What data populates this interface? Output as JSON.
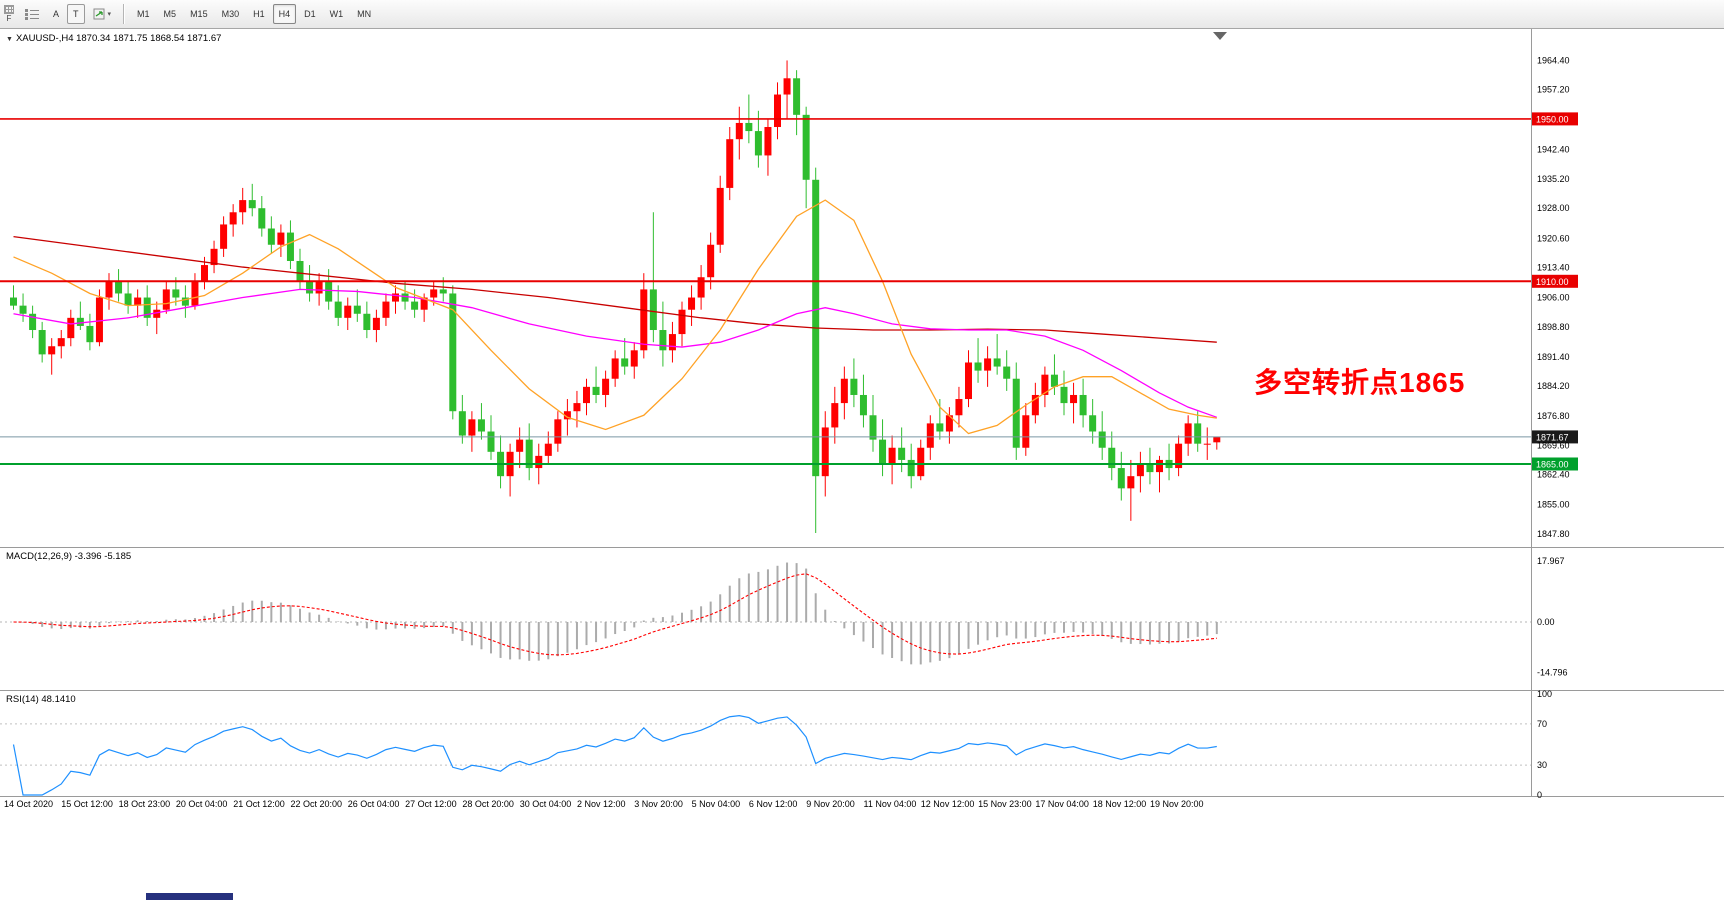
{
  "toolbar": {
    "corner_label": "F",
    "button_a": "A",
    "button_t": "T",
    "timeframes": [
      "M1",
      "M5",
      "M15",
      "M30",
      "H1",
      "H4",
      "D1",
      "W1",
      "MN"
    ],
    "selected_timeframe": "H4"
  },
  "chart": {
    "symbol_line": "XAUUSD-,H4 1870.34 1871.75 1868.54 1871.67",
    "annotation": {
      "text": "多空转折点1865",
      "color": "#FF0000"
    },
    "current_price_label": "1871.67"
  },
  "macd_panel": {
    "label": "MACD(12,26,9) -3.396 -5.185"
  },
  "rsi_panel": {
    "label": "RSI(14) 48.1410"
  },
  "chart_data": {
    "type": "candlestick",
    "symbol": "XAUUSD-",
    "timeframe": "H4",
    "last_ohlc": {
      "open": 1870.34,
      "high": 1871.75,
      "low": 1868.54,
      "close": 1871.67
    },
    "colors": {
      "bull": "#FF0000",
      "bear": "#2EBD2E",
      "ma_red": "#C80000",
      "ma_magenta": "#FF00FF",
      "ma_orange": "#FFA226",
      "rsi": "#1E90FF",
      "macd_hist": "#ABABAB",
      "macd_signal": "#FF0000"
    },
    "y_axis_ticks": [
      1964.4,
      1957.2,
      1942.4,
      1935.2,
      1928.0,
      1920.6,
      1913.4,
      1906.0,
      1898.8,
      1891.4,
      1884.2,
      1876.8,
      1869.6,
      1862.4,
      1855.0,
      1847.8
    ],
    "hlines": [
      {
        "price": 1950.0,
        "color": "#E80000",
        "width": 1.6,
        "label": "1950.00",
        "label_bg": "#E80000"
      },
      {
        "price": 1910.0,
        "color": "#E80000",
        "width": 2,
        "label": "1910.00",
        "label_bg": "#E80000"
      },
      {
        "price": 1865.0,
        "color": "#00A02C",
        "width": 2,
        "label": "1865.00",
        "label_bg": "#00A02C"
      },
      {
        "price": 1871.67,
        "color": "#7A97A5",
        "width": 1,
        "label": "1871.67",
        "label_bg": "#1A1A1A"
      }
    ],
    "x_labels": [
      {
        "i": 0,
        "t": "14 Oct 2020"
      },
      {
        "i": 6,
        "t": "15 Oct 12:00"
      },
      {
        "i": 12,
        "t": "18 Oct 23:00"
      },
      {
        "i": 18,
        "t": "20 Oct 04:00"
      },
      {
        "i": 24,
        "t": "21 Oct 12:00"
      },
      {
        "i": 30,
        "t": "22 Oct 20:00"
      },
      {
        "i": 36,
        "t": "26 Oct 04:00"
      },
      {
        "i": 42,
        "t": "27 Oct 12:00"
      },
      {
        "i": 48,
        "t": "28 Oct 20:00"
      },
      {
        "i": 54,
        "t": "30 Oct 04:00"
      },
      {
        "i": 60,
        "t": "2 Nov 12:00"
      },
      {
        "i": 66,
        "t": "3 Nov 20:00"
      },
      {
        "i": 72,
        "t": "5 Nov 04:00"
      },
      {
        "i": 78,
        "t": "6 Nov 12:00"
      },
      {
        "i": 84,
        "t": "9 Nov 20:00"
      },
      {
        "i": 90,
        "t": "11 Nov 04:00"
      },
      {
        "i": 96,
        "t": "12 Nov 12:00"
      },
      {
        "i": 102,
        "t": "15 Nov 23:00"
      },
      {
        "i": 108,
        "t": "17 Nov 04:00"
      },
      {
        "i": 114,
        "t": "18 Nov 12:00"
      },
      {
        "i": 120,
        "t": "19 Nov 20:00"
      }
    ],
    "candles": [
      [
        1906,
        1909,
        1903,
        1904
      ],
      [
        1904,
        1907,
        1900,
        1902
      ],
      [
        1902,
        1904,
        1896,
        1898
      ],
      [
        1898,
        1900,
        1890,
        1892
      ],
      [
        1892,
        1896,
        1887,
        1894
      ],
      [
        1894,
        1898,
        1891,
        1896
      ],
      [
        1896,
        1903,
        1894,
        1901
      ],
      [
        1901,
        1905,
        1898,
        1899
      ],
      [
        1899,
        1902,
        1893,
        1895
      ],
      [
        1895,
        1908,
        1894,
        1906
      ],
      [
        1906,
        1912,
        1903,
        1910
      ],
      [
        1910,
        1913,
        1905,
        1907
      ],
      [
        1907,
        1910,
        1902,
        1904
      ],
      [
        1904,
        1908,
        1901,
        1906
      ],
      [
        1906,
        1909,
        1899,
        1901
      ],
      [
        1901,
        1905,
        1897,
        1903
      ],
      [
        1903,
        1910,
        1902,
        1908
      ],
      [
        1908,
        1911,
        1904,
        1906
      ],
      [
        1906,
        1909,
        1901,
        1904
      ],
      [
        1904,
        1912,
        1903,
        1910
      ],
      [
        1910,
        1916,
        1908,
        1914
      ],
      [
        1914,
        1920,
        1912,
        1918
      ],
      [
        1918,
        1926,
        1916,
        1924
      ],
      [
        1924,
        1929,
        1921,
        1927
      ],
      [
        1927,
        1933,
        1924,
        1930
      ],
      [
        1930,
        1934,
        1926,
        1928
      ],
      [
        1928,
        1931,
        1921,
        1923
      ],
      [
        1923,
        1926,
        1917,
        1919
      ],
      [
        1919,
        1924,
        1916,
        1922
      ],
      [
        1922,
        1925,
        1913,
        1915
      ],
      [
        1915,
        1918,
        1908,
        1910
      ],
      [
        1910,
        1914,
        1905,
        1907
      ],
      [
        1907,
        1912,
        1904,
        1910
      ],
      [
        1910,
        1913,
        1903,
        1905
      ],
      [
        1905,
        1909,
        1899,
        1901
      ],
      [
        1901,
        1906,
        1898,
        1904
      ],
      [
        1904,
        1908,
        1900,
        1902
      ],
      [
        1902,
        1905,
        1896,
        1898
      ],
      [
        1898,
        1903,
        1895,
        1901
      ],
      [
        1901,
        1907,
        1899,
        1905
      ],
      [
        1905,
        1909,
        1902,
        1907
      ],
      [
        1907,
        1910,
        1903,
        1905
      ],
      [
        1905,
        1908,
        1901,
        1903
      ],
      [
        1903,
        1907,
        1900,
        1906
      ],
      [
        1906,
        1910,
        1904,
        1908
      ],
      [
        1908,
        1911,
        1905,
        1907
      ],
      [
        1907,
        1909,
        1876,
        1878
      ],
      [
        1878,
        1882,
        1870,
        1872
      ],
      [
        1872,
        1878,
        1868,
        1876
      ],
      [
        1876,
        1880,
        1871,
        1873
      ],
      [
        1873,
        1877,
        1866,
        1868
      ],
      [
        1868,
        1872,
        1859,
        1862
      ],
      [
        1862,
        1870,
        1857,
        1868
      ],
      [
        1868,
        1874,
        1864,
        1871
      ],
      [
        1871,
        1875,
        1861,
        1864
      ],
      [
        1864,
        1870,
        1860,
        1867
      ],
      [
        1867,
        1873,
        1865,
        1870
      ],
      [
        1870,
        1878,
        1868,
        1876
      ],
      [
        1876,
        1881,
        1872,
        1878
      ],
      [
        1878,
        1883,
        1874,
        1880
      ],
      [
        1880,
        1886,
        1877,
        1884
      ],
      [
        1884,
        1889,
        1880,
        1882
      ],
      [
        1882,
        1888,
        1879,
        1886
      ],
      [
        1886,
        1893,
        1884,
        1891
      ],
      [
        1891,
        1896,
        1887,
        1889
      ],
      [
        1889,
        1895,
        1886,
        1893
      ],
      [
        1893,
        1912,
        1891,
        1908
      ],
      [
        1908,
        1927,
        1895,
        1898
      ],
      [
        1898,
        1905,
        1889,
        1893
      ],
      [
        1893,
        1900,
        1890,
        1897
      ],
      [
        1897,
        1905,
        1894,
        1903
      ],
      [
        1903,
        1909,
        1899,
        1906
      ],
      [
        1906,
        1914,
        1903,
        1911
      ],
      [
        1911,
        1922,
        1908,
        1919
      ],
      [
        1919,
        1936,
        1917,
        1933
      ],
      [
        1933,
        1948,
        1930,
        1945
      ],
      [
        1945,
        1953,
        1940,
        1949
      ],
      [
        1949,
        1956,
        1944,
        1947
      ],
      [
        1947,
        1952,
        1938,
        1941
      ],
      [
        1941,
        1950,
        1936,
        1948
      ],
      [
        1948,
        1959,
        1945,
        1956
      ],
      [
        1956,
        1964.4,
        1950,
        1960
      ],
      [
        1960,
        1962,
        1946,
        1951
      ],
      [
        1951,
        1953,
        1928,
        1935
      ],
      [
        1935,
        1938,
        1848,
        1862
      ],
      [
        1862,
        1878,
        1857,
        1874
      ],
      [
        1874,
        1884,
        1870,
        1880
      ],
      [
        1880,
        1889,
        1876,
        1886
      ],
      [
        1886,
        1891,
        1879,
        1882
      ],
      [
        1882,
        1887,
        1874,
        1877
      ],
      [
        1877,
        1882,
        1868,
        1871
      ],
      [
        1871,
        1876,
        1862,
        1865
      ],
      [
        1865,
        1872,
        1860,
        1869
      ],
      [
        1869,
        1874,
        1863,
        1866
      ],
      [
        1866,
        1870,
        1859,
        1862
      ],
      [
        1862,
        1871,
        1861,
        1869
      ],
      [
        1869,
        1877,
        1866,
        1875
      ],
      [
        1875,
        1881,
        1871,
        1873
      ],
      [
        1873,
        1879,
        1870,
        1877
      ],
      [
        1877,
        1884,
        1874,
        1881
      ],
      [
        1881,
        1893,
        1879,
        1890
      ],
      [
        1890,
        1896,
        1885,
        1888
      ],
      [
        1888,
        1894,
        1884,
        1891
      ],
      [
        1891,
        1897,
        1887,
        1889
      ],
      [
        1889,
        1893,
        1883,
        1886
      ],
      [
        1886,
        1890,
        1866,
        1869
      ],
      [
        1869,
        1880,
        1867,
        1877
      ],
      [
        1877,
        1885,
        1875,
        1882
      ],
      [
        1882,
        1889,
        1879,
        1887
      ],
      [
        1887,
        1892,
        1882,
        1884
      ],
      [
        1884,
        1888,
        1877,
        1880
      ],
      [
        1880,
        1885,
        1875,
        1882
      ],
      [
        1882,
        1886,
        1874,
        1877
      ],
      [
        1877,
        1881,
        1870,
        1873
      ],
      [
        1873,
        1878,
        1866,
        1869
      ],
      [
        1869,
        1873,
        1861,
        1864
      ],
      [
        1864,
        1868,
        1856,
        1859
      ],
      [
        1859,
        1866,
        1851,
        1862
      ],
      [
        1862,
        1868,
        1858,
        1865
      ],
      [
        1865,
        1869,
        1860,
        1863
      ],
      [
        1863,
        1867,
        1858,
        1866
      ],
      [
        1866,
        1870,
        1861,
        1864
      ],
      [
        1864,
        1872,
        1862,
        1870
      ],
      [
        1870,
        1877,
        1867,
        1875
      ],
      [
        1875,
        1878,
        1868,
        1870
      ],
      [
        1870,
        1874,
        1866,
        1870
      ],
      [
        1870.34,
        1871.75,
        1868.54,
        1871.67
      ]
    ],
    "ma_lines": [
      {
        "name": "ma-red-line",
        "color": "#C80000",
        "points": [
          [
            0,
            1921
          ],
          [
            8,
            1918.5
          ],
          [
            16,
            1916
          ],
          [
            24,
            1913.5
          ],
          [
            32,
            1911.5
          ],
          [
            40,
            1909.5
          ],
          [
            48,
            1908
          ],
          [
            56,
            1906
          ],
          [
            64,
            1903.5
          ],
          [
            72,
            1901
          ],
          [
            78,
            1899.5
          ],
          [
            84,
            1898.5
          ],
          [
            90,
            1898
          ],
          [
            96,
            1898
          ],
          [
            102,
            1898.2
          ],
          [
            108,
            1898
          ],
          [
            114,
            1897
          ],
          [
            120,
            1896
          ],
          [
            126,
            1895
          ]
        ]
      },
      {
        "name": "ma-magenta-line",
        "color": "#FF00FF",
        "points": [
          [
            0,
            1902
          ],
          [
            6,
            1899.5
          ],
          [
            12,
            1901
          ],
          [
            18,
            1903.5
          ],
          [
            24,
            1906
          ],
          [
            30,
            1908
          ],
          [
            36,
            1907.5
          ],
          [
            42,
            1906
          ],
          [
            48,
            1903.5
          ],
          [
            54,
            1899.5
          ],
          [
            60,
            1896.5
          ],
          [
            66,
            1894.5
          ],
          [
            70,
            1893.8
          ],
          [
            74,
            1895
          ],
          [
            78,
            1898
          ],
          [
            82,
            1902
          ],
          [
            85,
            1903.5
          ],
          [
            88,
            1902
          ],
          [
            92,
            1899.5
          ],
          [
            96,
            1898.3
          ],
          [
            100,
            1898
          ],
          [
            104,
            1898
          ],
          [
            108,
            1896.5
          ],
          [
            112,
            1893
          ],
          [
            116,
            1888
          ],
          [
            120,
            1882.5
          ],
          [
            123,
            1879
          ],
          [
            126,
            1876.5
          ]
        ]
      },
      {
        "name": "ma-orange-line",
        "color": "#FFA226",
        "points": [
          [
            0,
            1916
          ],
          [
            4,
            1912
          ],
          [
            8,
            1907
          ],
          [
            12,
            1904
          ],
          [
            16,
            1904.5
          ],
          [
            20,
            1906.5
          ],
          [
            24,
            1912
          ],
          [
            28,
            1918.5
          ],
          [
            31,
            1921.5
          ],
          [
            34,
            1918
          ],
          [
            40,
            1908.5
          ],
          [
            46,
            1903
          ],
          [
            50,
            1893
          ],
          [
            54,
            1883.5
          ],
          [
            58,
            1876.5
          ],
          [
            62,
            1873.5
          ],
          [
            66,
            1877
          ],
          [
            70,
            1886
          ],
          [
            74,
            1898
          ],
          [
            78,
            1913
          ],
          [
            82,
            1926
          ],
          [
            85,
            1930
          ],
          [
            88,
            1925
          ],
          [
            91,
            1910
          ],
          [
            94,
            1892
          ],
          [
            97,
            1879
          ],
          [
            100,
            1872.5
          ],
          [
            103,
            1874.5
          ],
          [
            106,
            1879.5
          ],
          [
            109,
            1884
          ],
          [
            112,
            1886.5
          ],
          [
            115,
            1886.5
          ],
          [
            118,
            1882.5
          ],
          [
            121,
            1878.5
          ],
          [
            124,
            1877
          ],
          [
            126,
            1876.3
          ]
        ]
      }
    ],
    "indicators": {
      "macd": {
        "fast": 12,
        "slow": 26,
        "signal": 9,
        "last_main": -3.396,
        "last_signal": -5.185,
        "axis": [
          {
            "v": 17.967,
            "t": "17.967"
          },
          {
            "v": 0,
            "t": "0.00"
          },
          {
            "v": -14.796,
            "t": "-14.796"
          }
        ]
      },
      "rsi": {
        "period": 14,
        "last": 48.141,
        "levels": [
          70,
          30
        ],
        "axis": [
          {
            "v": 100,
            "t": "100"
          },
          {
            "v": 70,
            "t": "70"
          },
          {
            "v": 30,
            "t": "30"
          },
          {
            "v": 0,
            "t": "0"
          }
        ]
      }
    }
  }
}
